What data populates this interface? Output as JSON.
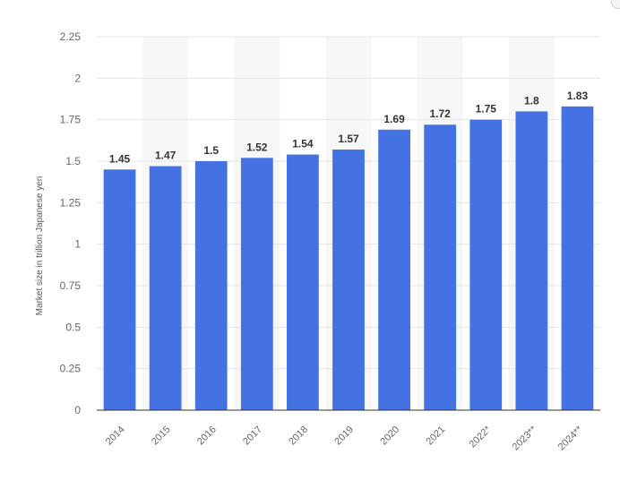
{
  "chart_data": {
    "type": "bar",
    "categories": [
      "2014",
      "2015",
      "2016",
      "2017",
      "2018",
      "2019",
      "2020",
      "2021",
      "2022*",
      "2023**",
      "2024**"
    ],
    "values": [
      1.45,
      1.47,
      1.5,
      1.52,
      1.54,
      1.57,
      1.69,
      1.72,
      1.75,
      1.8,
      1.83
    ],
    "data_labels": [
      "1.45",
      "1.47",
      "1.5",
      "1.52",
      "1.54",
      "1.57",
      "1.69",
      "1.72",
      "1.75",
      "1.8",
      "1.83"
    ],
    "ylabel": "Market size in trillion Japanese yen",
    "xlabel": "",
    "ylim": [
      0,
      2.25
    ],
    "yticks": [
      0,
      0.25,
      0.5,
      0.75,
      1,
      1.25,
      1.5,
      1.75,
      2,
      2.25
    ],
    "ytick_labels": [
      "0",
      "0.25",
      "0.5",
      "0.75",
      "1",
      "1.25",
      "1.5",
      "1.75",
      "2",
      "2.25"
    ],
    "grid": true,
    "bar_color": "#4472e2",
    "alternating_band_color": "#f7f7f7"
  }
}
